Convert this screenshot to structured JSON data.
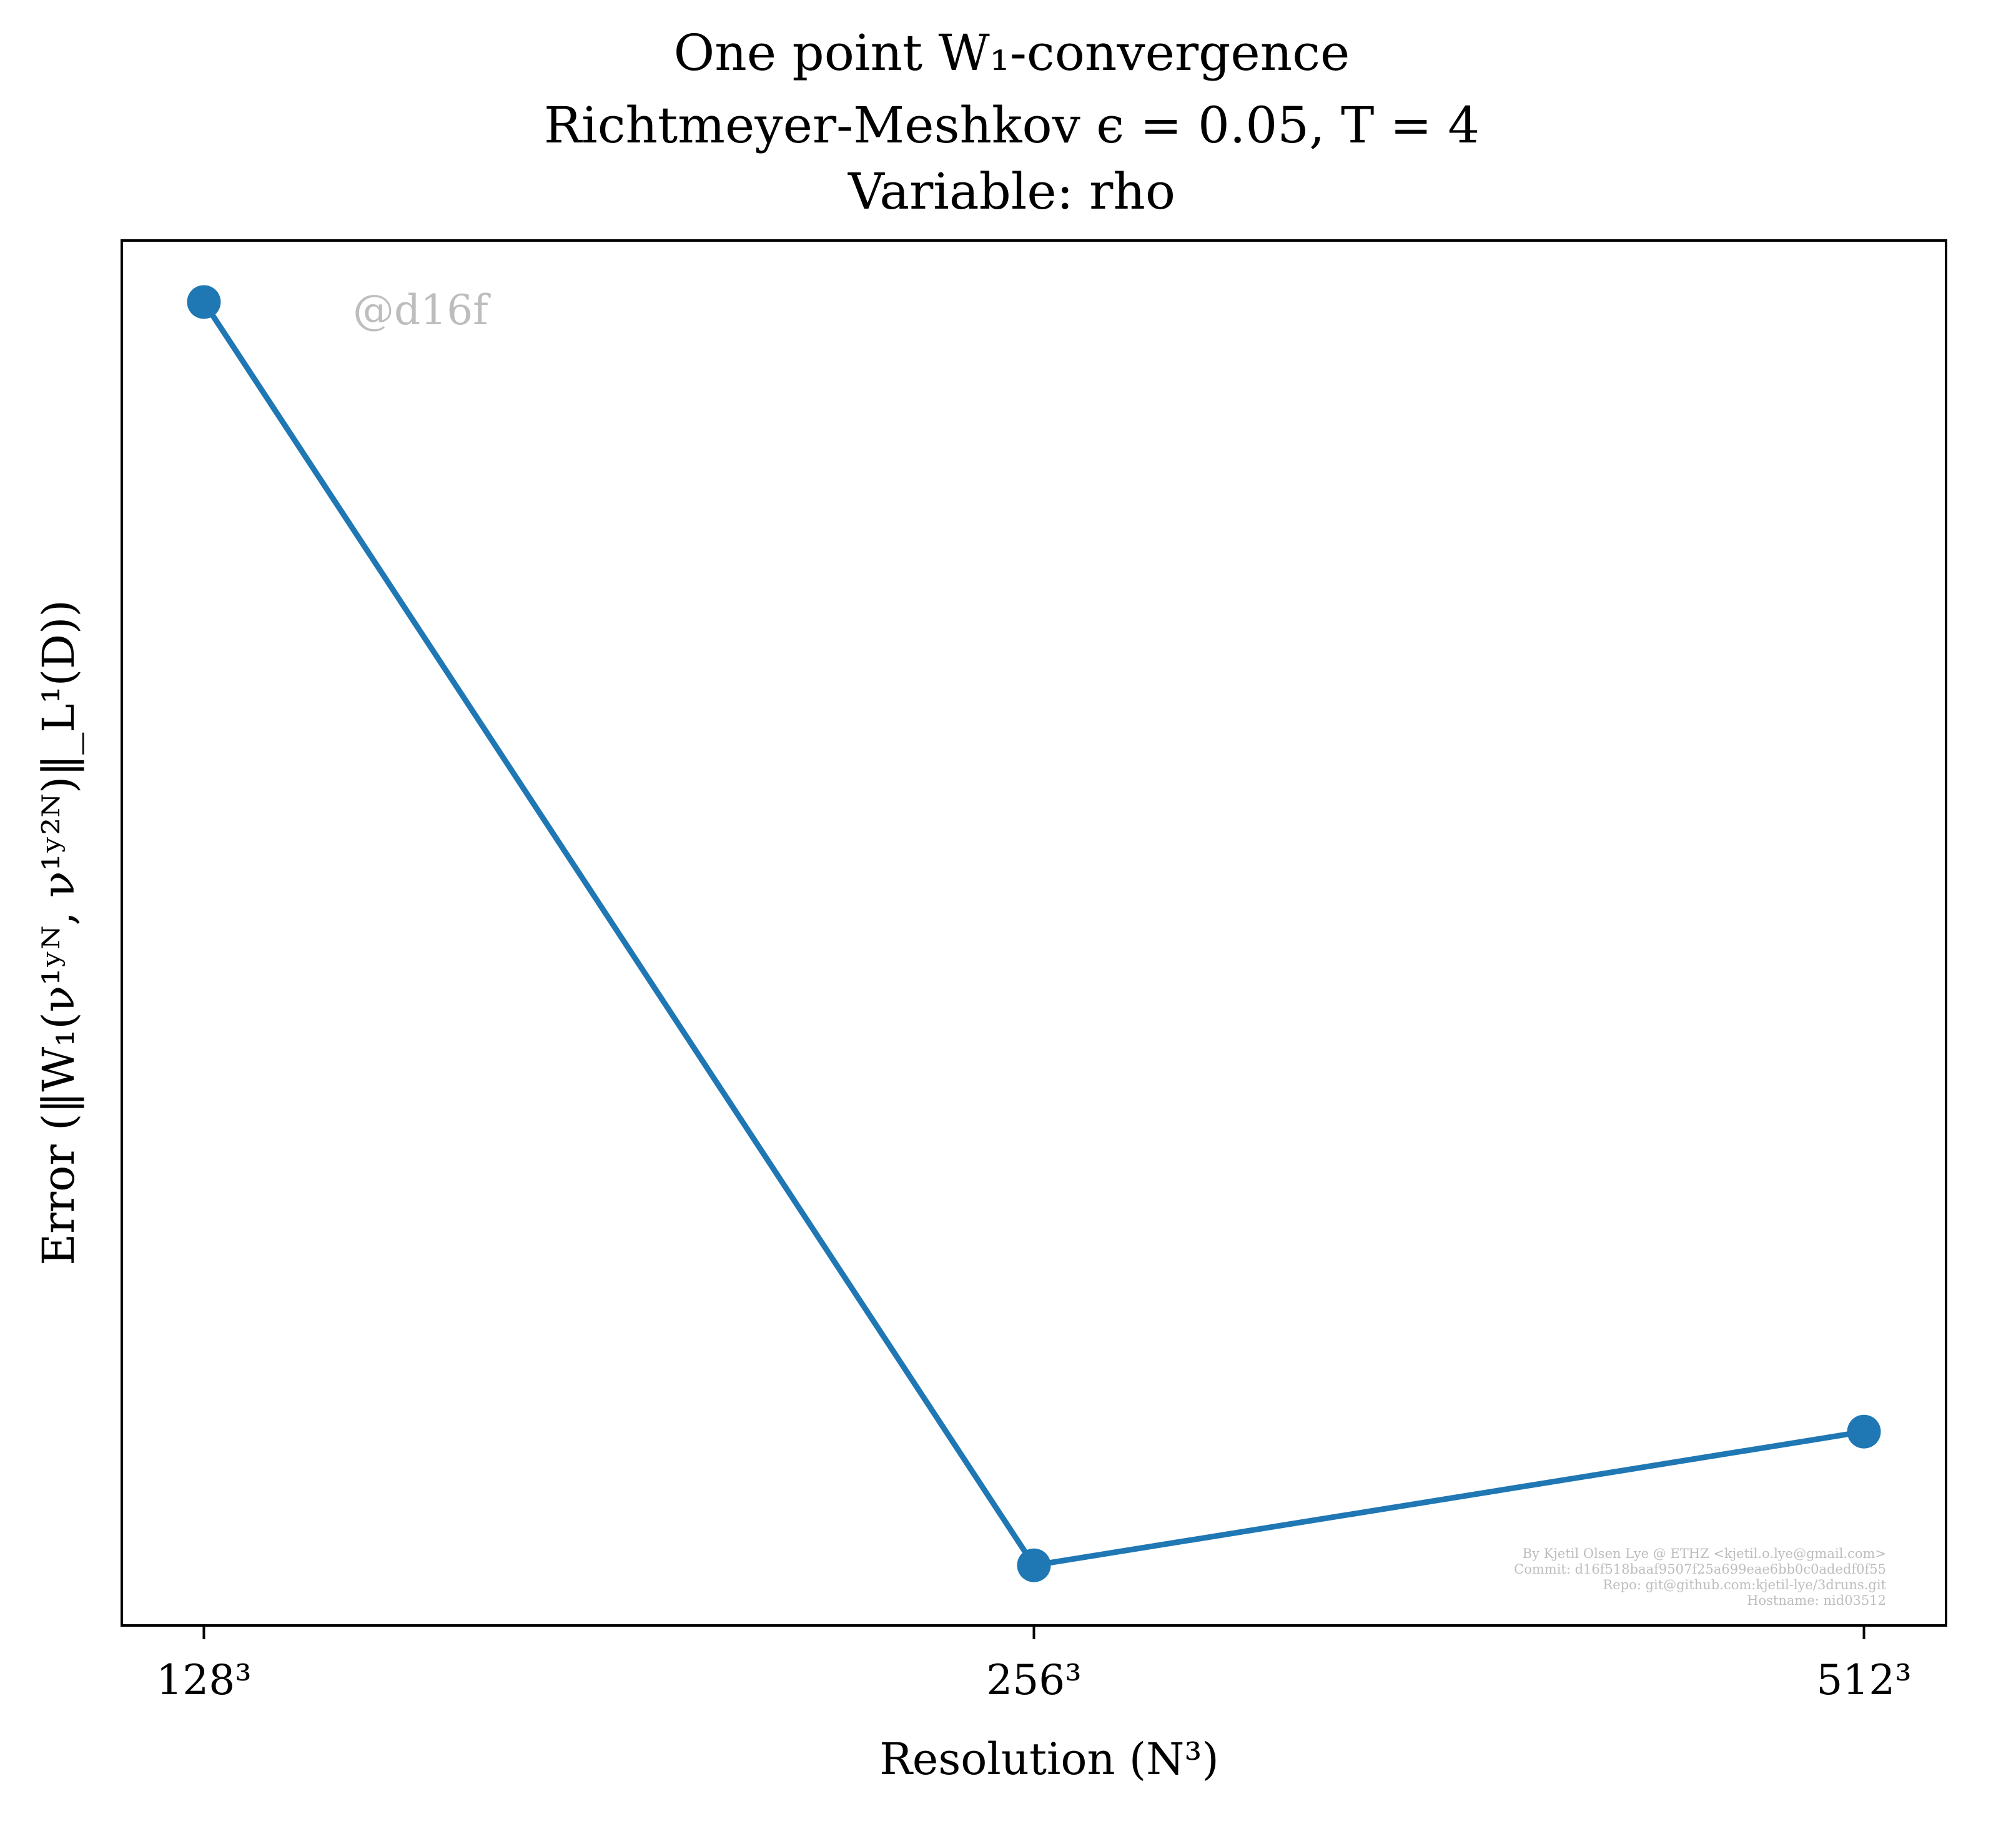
{
  "chart_data": {
    "type": "line",
    "title_lines": [
      "One point W₁-convergence",
      "Richtmeyer-Meshkov ϵ = 0.05, T = 4",
      "Variable: rho"
    ],
    "xlabel": "Resolution (N³)",
    "ylabel": "Error (‖W₁(ν¹ʸᴺ, ν¹ʸ²ᴺ)‖_L¹(D))",
    "x_categories": [
      "128³",
      "256³",
      "512³"
    ],
    "series": [
      {
        "values": [
          1.0,
          0.055,
          0.155
        ]
      }
    ],
    "ylim": [
      0.01,
      1.046
    ],
    "y_ticks_shown": false,
    "grid": false,
    "legend": "none",
    "color": "#1f77b4",
    "watermark": "@d16f",
    "credits": [
      "By Kjetil Olsen Lye @ ETHZ <kjetil.o.lye@gmail.com>",
      "Commit: d16f518baaf9507f25a699eae6bb0c0adedf0f55",
      "Repo: git@github.com:kjetil-lye/3druns.git",
      "Hostname: nid03512"
    ]
  }
}
